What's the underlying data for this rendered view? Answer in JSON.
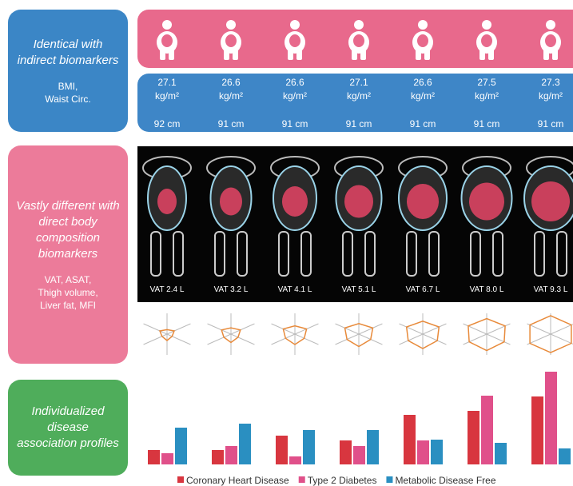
{
  "rows": [
    {
      "title": "Identical with indirect biomarkers",
      "subtitle": "BMI,\nWaist Circ."
    },
    {
      "title": "Vastly different with direct body composition biomarkers",
      "subtitle": "VAT, ASAT,\nThigh volume,\nLiver fat, MFI"
    },
    {
      "title": "Individualized disease association profiles"
    }
  ],
  "subjects": [
    {
      "bmi": "27.1",
      "bmi_unit": "kg/m²",
      "waist": "92 cm",
      "vat": "VAT 2.4 L"
    },
    {
      "bmi": "26.6",
      "bmi_unit": "kg/m²",
      "waist": "91 cm",
      "vat": "VAT 3.2 L"
    },
    {
      "bmi": "26.6",
      "bmi_unit": "kg/m²",
      "waist": "91 cm",
      "vat": "VAT 4.1 L"
    },
    {
      "bmi": "27.1",
      "bmi_unit": "kg/m²",
      "waist": "91 cm",
      "vat": "VAT 5.1 L"
    },
    {
      "bmi": "26.6",
      "bmi_unit": "kg/m²",
      "waist": "91 cm",
      "vat": "VAT 6.7 L"
    },
    {
      "bmi": "27.5",
      "bmi_unit": "kg/m²",
      "waist": "91 cm",
      "vat": "VAT 8.0 L"
    },
    {
      "bmi": "27.3",
      "bmi_unit": "kg/m²",
      "waist": "91 cm",
      "vat": "VAT 9.3 L"
    }
  ],
  "chart_data": {
    "type": "bar",
    "categories": [
      null,
      null,
      null,
      null,
      null,
      null,
      null
    ],
    "ylim": [
      0,
      120
    ],
    "series": [
      {
        "name": "Coronary Heart Disease",
        "color": "#d8363f",
        "values": [
          18,
          18,
          36,
          30,
          62,
          67,
          85
        ]
      },
      {
        "name": "Type 2 Diabetes",
        "color": "#e0508a",
        "values": [
          14,
          23,
          10,
          23,
          30,
          86,
          116
        ]
      },
      {
        "name": "Metabolic Disease Free",
        "color": "#2a8fc1",
        "values": [
          46,
          51,
          43,
          43,
          31,
          27,
          20
        ]
      }
    ]
  }
}
